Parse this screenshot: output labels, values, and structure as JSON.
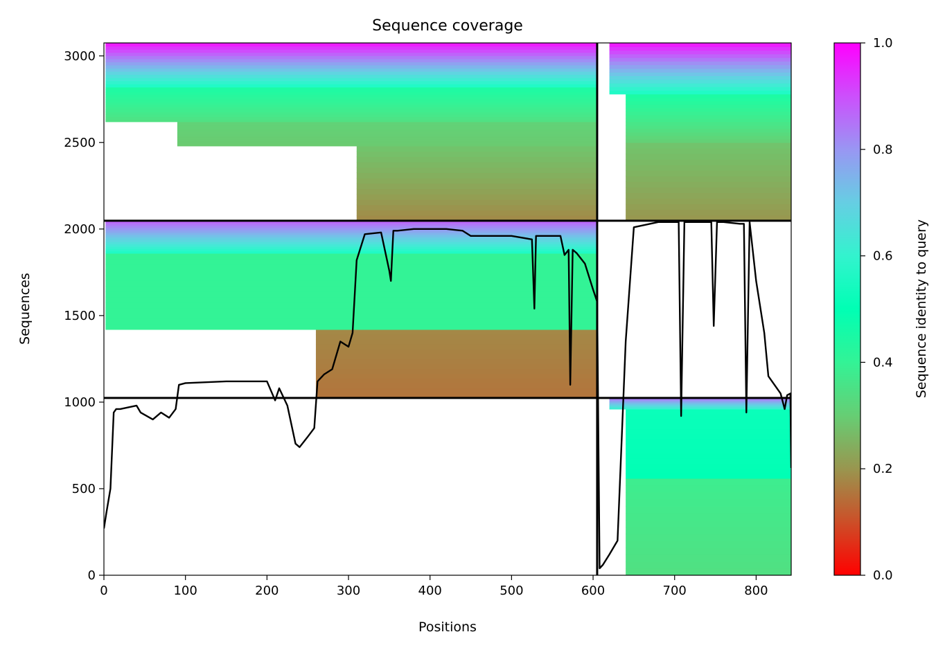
{
  "chart_data": {
    "type": "heatmap",
    "title": "Sequence coverage",
    "xlabel": "Positions",
    "ylabel": "Sequences",
    "xlim": [
      0,
      843
    ],
    "ylim": [
      0,
      3075
    ],
    "x_ticks": [
      0,
      100,
      200,
      300,
      400,
      500,
      600,
      700,
      800
    ],
    "y_ticks": [
      0,
      500,
      1000,
      1500,
      2000,
      2500,
      3000
    ],
    "grid": false,
    "colorbar": {
      "label": "Sequence identity to query",
      "range": [
        0,
        1
      ],
      "ticks": [
        "0.0",
        "0.2",
        "0.4",
        "0.6",
        "0.8",
        "1.0"
      ],
      "colormap": "rainbow_r",
      "colors": [
        "#ff0000",
        "#ff7f40",
        "#c8d98f",
        "#80ffb4",
        "#00b4eb",
        "#8000ff"
      ]
    },
    "chain_boundaries": {
      "x": [
        605
      ],
      "y": [
        1024,
        2048
      ],
      "color": "#000000"
    },
    "coverage_blocks": [
      {
        "x0": 0,
        "x1": 605,
        "y0": 1024,
        "y1": 1420,
        "row_start": 260,
        "id_bottom": 0.15,
        "id_top": 0.18
      },
      {
        "x0": 0,
        "x1": 605,
        "y0": 1420,
        "y1": 1860,
        "row_start": 2,
        "id_bottom": 0.4,
        "id_top": 0.4
      },
      {
        "x0": 0,
        "x1": 605,
        "y0": 1860,
        "y1": 2048,
        "row_start": 2,
        "id_bottom": 0.55,
        "id_top": 0.88
      },
      {
        "x0": 0,
        "x1": 605,
        "y0": 2048,
        "y1": 2480,
        "row_start": 310,
        "id_bottom": 0.18,
        "id_top": 0.28
      },
      {
        "x0": 0,
        "x1": 605,
        "y0": 2480,
        "y1": 2620,
        "row_start": 90,
        "id_bottom": 0.29,
        "id_top": 0.31
      },
      {
        "x0": 0,
        "x1": 605,
        "y0": 2620,
        "y1": 2820,
        "row_start": 2,
        "id_bottom": 0.34,
        "id_top": 0.45
      },
      {
        "x0": 0,
        "x1": 605,
        "y0": 2820,
        "y1": 3075,
        "row_start": 2,
        "id_bottom": 0.55,
        "id_top": 0.98
      },
      {
        "x0": 605,
        "x1": 843,
        "y0": 0,
        "y1": 560,
        "row_start": 640,
        "id_bottom": 0.34,
        "id_top": 0.38
      },
      {
        "x0": 605,
        "x1": 843,
        "y0": 560,
        "y1": 960,
        "row_start": 640,
        "id_bottom": 0.5,
        "id_top": 0.52
      },
      {
        "x0": 605,
        "x1": 843,
        "y0": 960,
        "y1": 1024,
        "row_start": 620,
        "id_bottom": 0.6,
        "id_top": 0.85
      },
      {
        "x0": 605,
        "x1": 843,
        "y0": 2048,
        "y1": 2500,
        "row_start": 640,
        "id_bottom": 0.2,
        "id_top": 0.28
      },
      {
        "x0": 605,
        "x1": 843,
        "y0": 2500,
        "y1": 2780,
        "row_start": 640,
        "id_bottom": 0.3,
        "id_top": 0.45
      },
      {
        "x0": 605,
        "x1": 843,
        "y0": 2780,
        "y1": 3075,
        "row_start": 620,
        "id_bottom": 0.55,
        "id_top": 0.98
      }
    ],
    "coverage_line": {
      "color": "#000000",
      "x": [
        0,
        3,
        8,
        12,
        15,
        20,
        40,
        45,
        60,
        70,
        80,
        88,
        92,
        100,
        150,
        200,
        210,
        215,
        225,
        235,
        240,
        250,
        258,
        262,
        270,
        280,
        290,
        300,
        305,
        310,
        320,
        340,
        350,
        352,
        355,
        360,
        380,
        400,
        420,
        440,
        450,
        500,
        525,
        528,
        530,
        560,
        565,
        570,
        572,
        575,
        580,
        590,
        600,
        605,
        608,
        612,
        620,
        630,
        640,
        650,
        680,
        700,
        705,
        708,
        712,
        740,
        745,
        748,
        752,
        760,
        780,
        785,
        788,
        792,
        800,
        810,
        815,
        830,
        835,
        838,
        842,
        843
      ],
      "y": [
        270,
        360,
        500,
        940,
        960,
        960,
        980,
        940,
        900,
        940,
        910,
        960,
        1100,
        1110,
        1120,
        1120,
        1010,
        1080,
        980,
        760,
        740,
        800,
        850,
        1120,
        1160,
        1190,
        1350,
        1320,
        1400,
        1820,
        1970,
        1980,
        1760,
        1700,
        1990,
        1990,
        2000,
        2000,
        2000,
        1990,
        1960,
        1960,
        1940,
        1540,
        1960,
        1960,
        1850,
        1880,
        1100,
        1880,
        1860,
        1800,
        1650,
        1580,
        40,
        60,
        120,
        200,
        1350,
        2010,
        2040,
        2040,
        2040,
        920,
        2040,
        2040,
        2040,
        1440,
        2040,
        2040,
        2030,
        2030,
        940,
        2040,
        1700,
        1400,
        1150,
        1050,
        960,
        1040,
        1050,
        620
      ]
    }
  }
}
